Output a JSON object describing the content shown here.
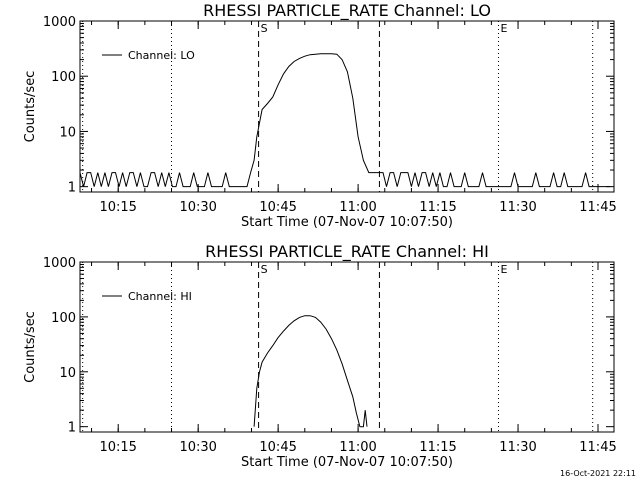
{
  "colors": {
    "background": "#ffffff",
    "ink": "#000000"
  },
  "footer": {
    "timestamp": "16-Oct-2021 22:11"
  },
  "chart_data": [
    {
      "type": "line",
      "title": "RHESSI PARTICLE_RATE Channel: LO",
      "xlabel": "Start Time (07-Nov-07 10:07:50)",
      "ylabel": "Counts/sec",
      "yscale": "log",
      "xlim": [
        "10:07:50",
        "11:48:00"
      ],
      "ylim": [
        0.8,
        1000
      ],
      "xticks": [
        "10:15",
        "10:30",
        "10:45",
        "11:00",
        "11:15",
        "11:30",
        "11:45"
      ],
      "yticks": [
        "1",
        "10",
        "100",
        "1000"
      ],
      "legend": {
        "position": "top-left",
        "entries": [
          "Channel: LO"
        ]
      },
      "markers": [
        {
          "label": "S",
          "time": "10:41:20",
          "style": "dashed"
        },
        {
          "label": "",
          "time": "11:04:00",
          "style": "dashed"
        },
        {
          "label": "E",
          "time": "11:26:20",
          "style": "dotted"
        },
        {
          "label": "",
          "time": "10:25:00",
          "style": "dotted"
        },
        {
          "label": "",
          "time": "11:44:00",
          "style": "dotted"
        },
        {
          "label": "",
          "time": "10:08:20",
          "style": "dotted"
        }
      ],
      "series": [
        {
          "name": "Channel: LO",
          "x": [
            "10:07:50",
            "10:08:30",
            "10:09:10",
            "10:09:50",
            "10:10:30",
            "10:11:10",
            "10:11:50",
            "10:12:30",
            "10:13:10",
            "10:13:50",
            "10:14:30",
            "10:15:10",
            "10:15:50",
            "10:16:30",
            "10:17:10",
            "10:17:50",
            "10:18:30",
            "10:19:10",
            "10:19:50",
            "10:20:30",
            "10:21:10",
            "10:21:50",
            "10:22:30",
            "10:23:10",
            "10:23:50",
            "10:24:30",
            "10:25:10",
            "10:25:50",
            "10:26:30",
            "10:27:10",
            "10:27:50",
            "10:28:30",
            "10:29:10",
            "10:29:50",
            "10:30:30",
            "10:31:10",
            "10:31:50",
            "10:32:30",
            "10:33:10",
            "10:33:50",
            "10:34:30",
            "10:35:10",
            "10:35:50",
            "10:36:30",
            "10:37:10",
            "10:37:50",
            "10:38:30",
            "10:39:10",
            "10:39:50",
            "10:40:30",
            "10:41:00",
            "10:42:00",
            "10:43:00",
            "10:44:00",
            "10:45:00",
            "10:46:00",
            "10:47:00",
            "10:48:00",
            "10:49:00",
            "10:50:00",
            "10:51:00",
            "10:52:00",
            "10:53:00",
            "10:54:00",
            "10:55:00",
            "10:56:00",
            "10:57:00",
            "10:58:00",
            "10:59:00",
            "11:00:00",
            "11:01:00",
            "11:02:00",
            "11:03:00",
            "11:04:00",
            "11:04:40",
            "11:05:20",
            "11:06:00",
            "11:06:40",
            "11:07:20",
            "11:08:00",
            "11:08:40",
            "11:09:20",
            "11:10:00",
            "11:10:40",
            "11:11:20",
            "11:12:00",
            "11:12:40",
            "11:13:20",
            "11:14:00",
            "11:14:40",
            "11:15:20",
            "11:16:00",
            "11:16:40",
            "11:17:20",
            "11:18:00",
            "11:18:40",
            "11:19:20",
            "11:20:00",
            "11:20:40",
            "11:21:20",
            "11:22:00",
            "11:22:40",
            "11:23:20",
            "11:24:00",
            "11:24:40",
            "11:25:20",
            "11:26:00",
            "11:26:40",
            "11:27:20",
            "11:28:00",
            "11:28:40",
            "11:29:20",
            "11:30:00",
            "11:30:40",
            "11:31:20",
            "11:32:00",
            "11:32:40",
            "11:33:20",
            "11:34:00",
            "11:34:40",
            "11:35:20",
            "11:36:00",
            "11:36:40",
            "11:37:20",
            "11:38:00",
            "11:38:40",
            "11:39:20",
            "11:40:00",
            "11:40:40",
            "11:41:20",
            "11:42:00",
            "11:42:40",
            "11:43:20",
            "11:44:00",
            "11:44:40",
            "11:45:20",
            "11:46:00",
            "11:46:40",
            "11:47:20"
          ],
          "y": [
            1.8,
            1,
            1.8,
            1.8,
            1,
            1.8,
            1,
            1.8,
            1,
            1.8,
            1.8,
            1,
            1.8,
            1,
            1.8,
            1.8,
            1,
            1.8,
            1,
            1,
            1.8,
            1.8,
            1,
            1.8,
            1,
            1.8,
            1,
            1,
            1.8,
            1,
            1,
            1,
            1.8,
            1,
            1,
            1,
            1.8,
            1,
            1,
            1,
            1,
            1.8,
            1,
            1,
            1,
            1,
            1,
            1,
            1.8,
            3,
            8,
            25,
            32,
            42,
            70,
            110,
            150,
            185,
            210,
            230,
            245,
            250,
            255,
            255,
            255,
            250,
            200,
            120,
            40,
            8,
            3,
            1.8,
            1.8,
            1.8,
            1.8,
            1,
            1.8,
            1.8,
            1,
            1.8,
            1.8,
            1.8,
            1,
            1.8,
            1,
            1.8,
            1.8,
            1,
            1.8,
            1,
            1.8,
            1,
            1,
            1.8,
            1,
            1,
            1,
            1.8,
            1,
            1,
            1,
            1,
            1.8,
            1,
            1,
            1,
            1,
            1,
            1,
            1,
            1,
            1.8,
            1,
            1,
            1,
            1,
            1,
            1.8,
            1,
            1,
            1,
            1,
            1.8,
            1,
            1,
            1.8,
            1,
            1,
            1,
            1,
            1,
            1.8,
            1,
            1,
            1,
            1,
            1,
            1,
            1
          ]
        }
      ]
    },
    {
      "type": "line",
      "title": "RHESSI PARTICLE_RATE Channel: HI",
      "xlabel": "Start Time (07-Nov-07 10:07:50)",
      "ylabel": "Counts/sec",
      "yscale": "log",
      "xlim": [
        "10:07:50",
        "11:48:00"
      ],
      "ylim": [
        0.8,
        1000
      ],
      "xticks": [
        "10:15",
        "10:30",
        "10:45",
        "11:00",
        "11:15",
        "11:30",
        "11:45"
      ],
      "yticks": [
        "1",
        "10",
        "100",
        "1000"
      ],
      "legend": {
        "position": "top-left",
        "entries": [
          "Channel: HI"
        ]
      },
      "markers": [
        {
          "label": "S",
          "time": "10:41:20",
          "style": "dashed"
        },
        {
          "label": "",
          "time": "11:04:00",
          "style": "dashed"
        },
        {
          "label": "E",
          "time": "11:26:20",
          "style": "dotted"
        },
        {
          "label": "",
          "time": "10:25:00",
          "style": "dotted"
        },
        {
          "label": "",
          "time": "11:44:00",
          "style": "dotted"
        },
        {
          "label": "",
          "time": "10:08:20",
          "style": "dotted"
        }
      ],
      "series": [
        {
          "name": "Channel: HI",
          "x": [
            "10:40:30",
            "10:41:00",
            "10:41:30",
            "10:42:00",
            "10:43:00",
            "10:44:00",
            "10:45:00",
            "10:46:00",
            "10:47:00",
            "10:48:00",
            "10:49:00",
            "10:50:00",
            "10:51:00",
            "10:52:00",
            "10:53:00",
            "10:54:00",
            "10:55:00",
            "10:56:00",
            "10:57:00",
            "10:58:00",
            "10:59:00",
            "10:59:40",
            "11:00:20",
            "11:01:00",
            "11:01:20",
            "11:01:40"
          ],
          "y": [
            1,
            5,
            10,
            15,
            22,
            30,
            42,
            55,
            70,
            85,
            98,
            105,
            105,
            98,
            80,
            60,
            40,
            25,
            14,
            7,
            3.5,
            1.8,
            1,
            1,
            2,
            1
          ]
        }
      ]
    }
  ]
}
